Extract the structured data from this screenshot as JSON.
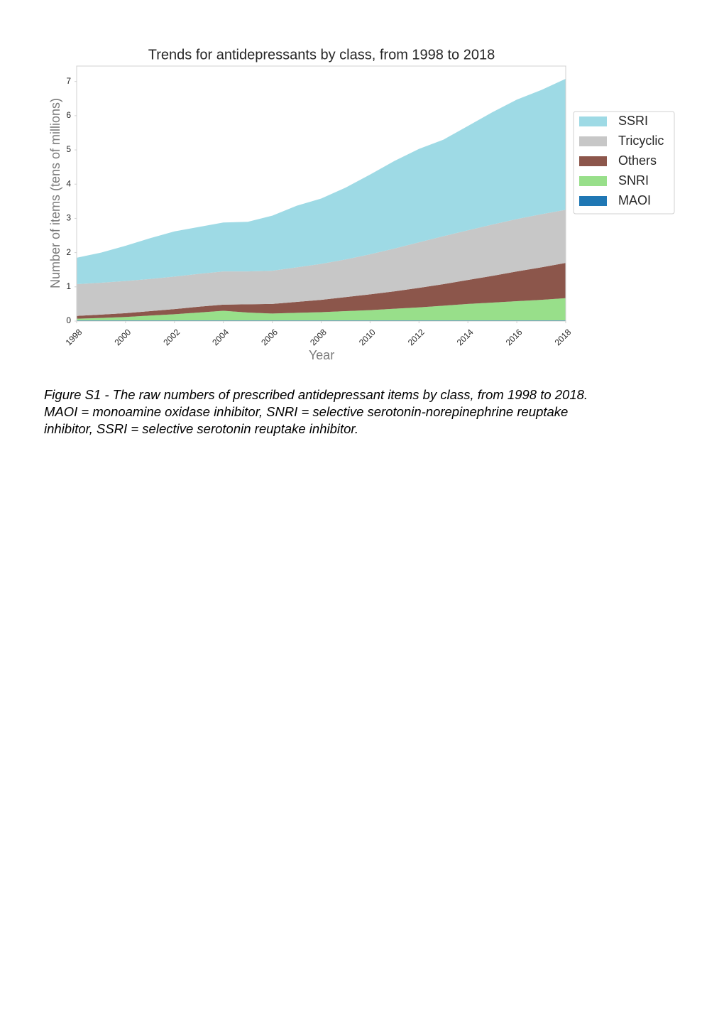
{
  "chart_data": {
    "type": "stackedarea",
    "title": "Trends for antidepressants by class, from 1998 to 2018",
    "x_label": "Year",
    "y_label": "Number of items (tens of millions)",
    "x": [
      1998,
      1999,
      2000,
      2001,
      2002,
      2003,
      2004,
      2005,
      2006,
      2007,
      2008,
      2009,
      2010,
      2011,
      2012,
      2013,
      2014,
      2015,
      2016,
      2017,
      2018
    ],
    "xlim": [
      1998,
      2018
    ],
    "xticks": [
      1998,
      2000,
      2002,
      2004,
      2006,
      2008,
      2010,
      2012,
      2014,
      2016,
      2018
    ],
    "ylim": [
      0,
      7.45
    ],
    "yticks": [
      0,
      1,
      2,
      3,
      4,
      5,
      6,
      7
    ],
    "grid": false,
    "legend": "right",
    "series": [
      {
        "name": "MAOI",
        "color": "#1f77b4",
        "values": [
          0.02,
          0.02,
          0.02,
          0.02,
          0.02,
          0.02,
          0.02,
          0.02,
          0.02,
          0.02,
          0.02,
          0.02,
          0.02,
          0.02,
          0.02,
          0.02,
          0.02,
          0.02,
          0.02,
          0.02,
          0.02
        ]
      },
      {
        "name": "SNRI",
        "color": "#98df8a",
        "values": [
          0.05,
          0.07,
          0.1,
          0.14,
          0.18,
          0.23,
          0.28,
          0.23,
          0.2,
          0.22,
          0.24,
          0.27,
          0.3,
          0.34,
          0.38,
          0.43,
          0.48,
          0.52,
          0.56,
          0.6,
          0.65
        ]
      },
      {
        "name": "Others",
        "color": "#8c564b",
        "values": [
          0.08,
          0.1,
          0.11,
          0.13,
          0.15,
          0.17,
          0.18,
          0.24,
          0.28,
          0.32,
          0.36,
          0.41,
          0.46,
          0.51,
          0.57,
          0.63,
          0.7,
          0.78,
          0.87,
          0.95,
          1.03
        ]
      },
      {
        "name": "Tricyclic",
        "color": "#c7c7c7",
        "values": [
          0.93,
          0.93,
          0.94,
          0.94,
          0.95,
          0.96,
          0.97,
          0.96,
          0.97,
          1.01,
          1.05,
          1.1,
          1.17,
          1.25,
          1.33,
          1.4,
          1.45,
          1.5,
          1.53,
          1.55,
          1.55
        ]
      },
      {
        "name": "SSRI",
        "color": "#9edae5",
        "values": [
          0.77,
          0.88,
          1.03,
          1.19,
          1.32,
          1.37,
          1.43,
          1.45,
          1.61,
          1.8,
          1.91,
          2.1,
          2.33,
          2.56,
          2.73,
          2.82,
          3.05,
          3.28,
          3.49,
          3.63,
          3.83
        ]
      }
    ]
  },
  "caption": [
    "Figure S1 - The raw numbers of prescribed antidepressant items by class, from 1998 to 2018.",
    "MAOI = monoamine oxidase inhibitor, SNRI = selective serotonin-norepinephrine reuptake",
    "inhibitor, SSRI = selective serotonin reuptake inhibitor."
  ]
}
